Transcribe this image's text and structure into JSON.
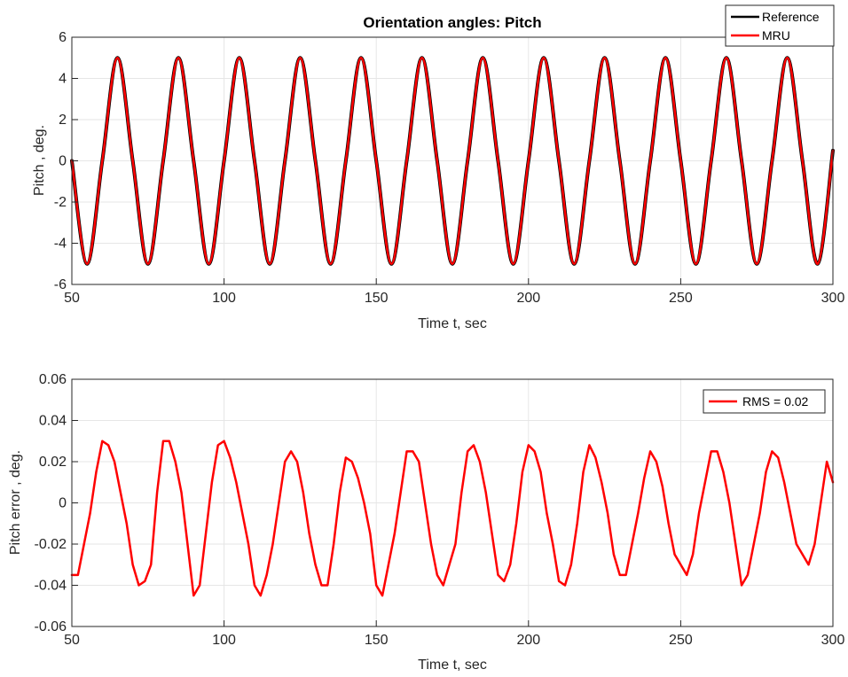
{
  "chart_data": [
    {
      "type": "line",
      "title": "Orientation angles: Pitch",
      "xlabel": "Time  t, sec",
      "ylabel": "Pitch , deg.",
      "xlim": [
        50,
        300
      ],
      "ylim": [
        -6,
        6
      ],
      "xticks": [
        50,
        100,
        150,
        200,
        250,
        300
      ],
      "yticks": [
        -6,
        -4,
        -2,
        0,
        2,
        4,
        6
      ],
      "grid": true,
      "legend_position": "top-right",
      "series": [
        {
          "name": "Reference",
          "color": "#000000",
          "x": [
            50,
            55,
            60,
            65,
            70,
            75,
            80,
            85,
            90,
            95,
            100,
            105,
            110,
            115,
            120,
            125,
            130,
            135,
            140,
            145,
            150,
            155,
            160,
            165,
            170,
            175,
            180,
            185,
            190,
            195,
            200,
            205,
            210,
            215,
            220,
            225,
            230,
            235,
            240,
            245,
            250,
            255,
            260,
            265,
            270,
            275,
            280,
            285,
            290,
            295,
            300
          ],
          "y": [
            0,
            -5,
            0,
            5,
            0,
            -5,
            0,
            5,
            0,
            -5,
            0,
            5,
            0,
            -5,
            0,
            5,
            0,
            -5,
            0,
            5,
            0,
            -5,
            0,
            5,
            0,
            -5,
            0,
            5,
            0,
            -5,
            0,
            5,
            0,
            -5,
            0,
            5,
            0,
            -5,
            0,
            5,
            0,
            -5,
            0,
            5,
            0,
            -5,
            0,
            5,
            0,
            -5,
            0.5
          ]
        },
        {
          "name": "MRU",
          "color": "#ff0000",
          "x": [
            50,
            55,
            60,
            65,
            70,
            75,
            80,
            85,
            90,
            95,
            100,
            105,
            110,
            115,
            120,
            125,
            130,
            135,
            140,
            145,
            150,
            155,
            160,
            165,
            170,
            175,
            180,
            185,
            190,
            195,
            200,
            205,
            210,
            215,
            220,
            225,
            230,
            235,
            240,
            245,
            250,
            255,
            260,
            265,
            270,
            275,
            280,
            285,
            290,
            295,
            300
          ],
          "y": [
            0,
            -5,
            0,
            5,
            0,
            -5,
            0,
            5,
            0,
            -5,
            0,
            5,
            0,
            -5,
            0,
            5,
            0,
            -5,
            0,
            5,
            0,
            -5,
            0,
            5,
            0,
            -5,
            0,
            5,
            0,
            -5,
            0,
            5,
            0,
            -5,
            0,
            5,
            0,
            -5,
            0,
            5,
            0,
            -5,
            0,
            5,
            0,
            -5,
            0,
            5,
            0,
            -5,
            0.5
          ]
        }
      ]
    },
    {
      "type": "line",
      "title": "",
      "xlabel": "Time  t, sec",
      "ylabel": "Pitch error  , deg.",
      "xlim": [
        50,
        300
      ],
      "ylim": [
        -0.06,
        0.06
      ],
      "xticks": [
        50,
        100,
        150,
        200,
        250,
        300
      ],
      "yticks": [
        -0.06,
        -0.04,
        -0.02,
        0,
        0.02,
        0.04,
        0.06
      ],
      "grid": true,
      "legend_position": "top-right",
      "series": [
        {
          "name": "RMS = 0.02",
          "color": "#ff0000",
          "x": [
            50,
            52,
            54,
            56,
            58,
            60,
            62,
            64,
            66,
            68,
            70,
            72,
            74,
            76,
            78,
            80,
            82,
            84,
            86,
            88,
            90,
            92,
            94,
            96,
            98,
            100,
            102,
            104,
            106,
            108,
            110,
            112,
            114,
            116,
            118,
            120,
            122,
            124,
            126,
            128,
            130,
            132,
            134,
            136,
            138,
            140,
            142,
            144,
            146,
            148,
            150,
            152,
            154,
            156,
            158,
            160,
            162,
            164,
            166,
            168,
            170,
            172,
            174,
            176,
            178,
            180,
            182,
            184,
            186,
            188,
            190,
            192,
            194,
            196,
            198,
            200,
            202,
            204,
            206,
            208,
            210,
            212,
            214,
            216,
            218,
            220,
            222,
            224,
            226,
            228,
            230,
            232,
            234,
            236,
            238,
            240,
            242,
            244,
            246,
            248,
            250,
            252,
            254,
            256,
            258,
            260,
            262,
            264,
            266,
            268,
            270,
            272,
            274,
            276,
            278,
            280,
            282,
            284,
            286,
            288,
            290,
            292,
            294,
            296,
            298,
            300
          ],
          "y": [
            -0.035,
            -0.035,
            -0.02,
            -0.005,
            0.015,
            0.03,
            0.028,
            0.02,
            0.005,
            -0.01,
            -0.03,
            -0.04,
            -0.038,
            -0.03,
            0.005,
            0.03,
            0.03,
            0.02,
            0.005,
            -0.02,
            -0.045,
            -0.04,
            -0.015,
            0.01,
            0.028,
            0.03,
            0.022,
            0.01,
            -0.005,
            -0.02,
            -0.04,
            -0.045,
            -0.035,
            -0.02,
            0.0,
            0.02,
            0.025,
            0.02,
            0.005,
            -0.015,
            -0.03,
            -0.04,
            -0.04,
            -0.02,
            0.005,
            0.022,
            0.02,
            0.012,
            0.0,
            -0.015,
            -0.04,
            -0.045,
            -0.03,
            -0.015,
            0.005,
            0.025,
            0.025,
            0.02,
            0.0,
            -0.02,
            -0.035,
            -0.04,
            -0.03,
            -0.02,
            0.005,
            0.025,
            0.028,
            0.02,
            0.005,
            -0.015,
            -0.035,
            -0.038,
            -0.03,
            -0.01,
            0.015,
            0.028,
            0.025,
            0.015,
            -0.005,
            -0.02,
            -0.038,
            -0.04,
            -0.03,
            -0.01,
            0.015,
            0.028,
            0.022,
            0.01,
            -0.005,
            -0.025,
            -0.035,
            -0.035,
            -0.02,
            -0.005,
            0.012,
            0.025,
            0.02,
            0.008,
            -0.01,
            -0.025,
            -0.03,
            -0.035,
            -0.025,
            -0.005,
            0.01,
            0.025,
            0.025,
            0.015,
            0.0,
            -0.02,
            -0.04,
            -0.035,
            -0.02,
            -0.005,
            0.015,
            0.025,
            0.022,
            0.01,
            -0.005,
            -0.02,
            -0.025,
            -0.03,
            -0.02,
            0.0,
            0.02,
            0.01
          ]
        }
      ]
    }
  ]
}
